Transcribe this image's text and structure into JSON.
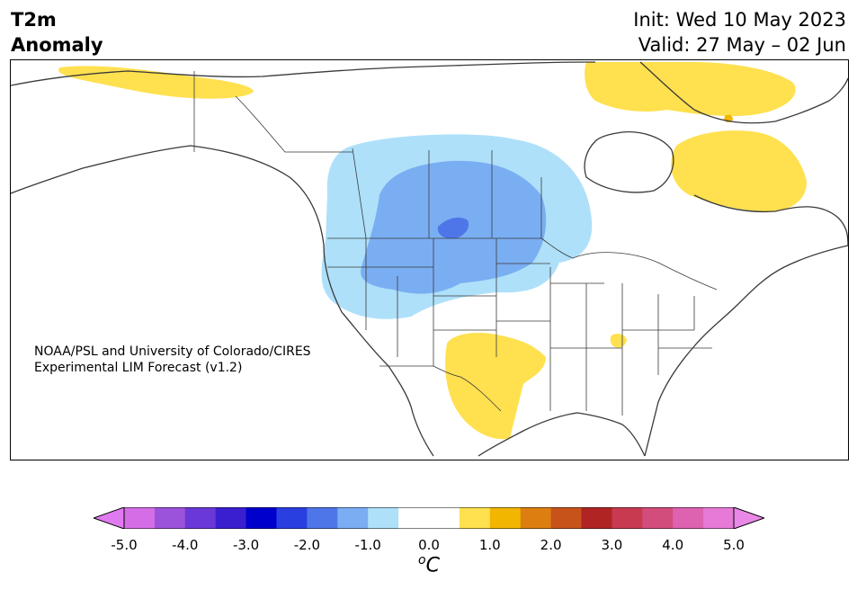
{
  "header": {
    "title_line1": "T2m",
    "title_line2": "Anomaly",
    "init": "Init: Wed 10 May 2023",
    "valid": "Valid: 27 May – 02 Jun"
  },
  "credit": {
    "line1": "NOAA/PSL and University of Colorado/CIRES",
    "line2": "Experimental LIM Forecast (v1.2)"
  },
  "colorbar": {
    "unit_base": "C",
    "unit_sup": "o",
    "ticks": [
      "-5.0",
      "-4.0",
      "-3.0",
      "-2.0",
      "-1.0",
      "0.0",
      "1.0",
      "2.0",
      "3.0",
      "4.0",
      "5.0"
    ],
    "colors": [
      "#d56ee6",
      "#9b53db",
      "#6a38d8",
      "#3a1fd0",
      "#0000cc",
      "#2a3fe0",
      "#4f76e8",
      "#7aaef2",
      "#aee0fa",
      "#ffffff",
      "#ffffff",
      "#ffe04f",
      "#f2b600",
      "#dd7f10",
      "#c8531a",
      "#b02424",
      "#c73a50",
      "#d24c7c",
      "#dd62b0",
      "#e67ad6"
    ],
    "under_color": "#e07af0",
    "over_color": "#ea88e8"
  },
  "map_colors": {
    "light_blue": "#aee0fa",
    "mid_blue": "#7aaef2",
    "dark_blue": "#4f76e8",
    "yellow": "#ffe04f",
    "gold": "#f2b600",
    "outline": "#3a3a3a"
  }
}
